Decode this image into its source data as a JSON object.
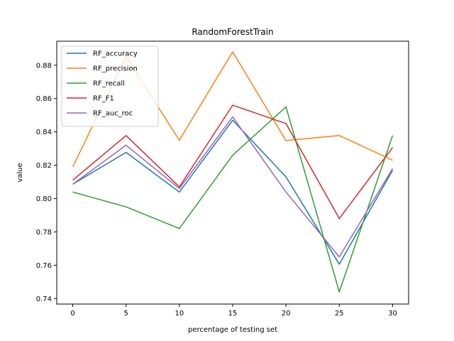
{
  "chart_data": {
    "type": "line",
    "title": "RandomForestTrain",
    "xlabel": "percentage of testing set",
    "ylabel": "value",
    "x": [
      0,
      5,
      10,
      15,
      20,
      25,
      30
    ],
    "xticks": [
      0,
      5,
      10,
      15,
      20,
      25,
      30
    ],
    "xlim": [
      -1.5,
      31.5
    ],
    "yticks": [
      0.74,
      0.76,
      0.78,
      0.8,
      0.82,
      0.84,
      0.86,
      0.88
    ],
    "ylim": [
      0.7367,
      0.8944
    ],
    "grid": false,
    "legend_position": "top-left",
    "series": [
      {
        "name": "RF_accuracy",
        "color": "#1f77b4",
        "values": [
          0.8086,
          0.8277,
          0.8039,
          0.847,
          0.813,
          0.7606,
          0.817
        ]
      },
      {
        "name": "RF_precision",
        "color": "#ff7f0e",
        "values": [
          0.819,
          0.885,
          0.835,
          0.888,
          0.8348,
          0.8378,
          0.823
        ]
      },
      {
        "name": "RF_recall",
        "color": "#2ca02c",
        "values": [
          0.8039,
          0.795,
          0.782,
          0.826,
          0.855,
          0.744,
          0.8378
        ]
      },
      {
        "name": "RF_F1",
        "color": "#d62728",
        "values": [
          0.811,
          0.8378,
          0.807,
          0.856,
          0.845,
          0.788,
          0.8306
        ]
      },
      {
        "name": "RF_auc_roc",
        "color": "#9467bd",
        "values": [
          0.8086,
          0.832,
          0.806,
          0.849,
          0.8039,
          0.765,
          0.818
        ]
      }
    ]
  }
}
